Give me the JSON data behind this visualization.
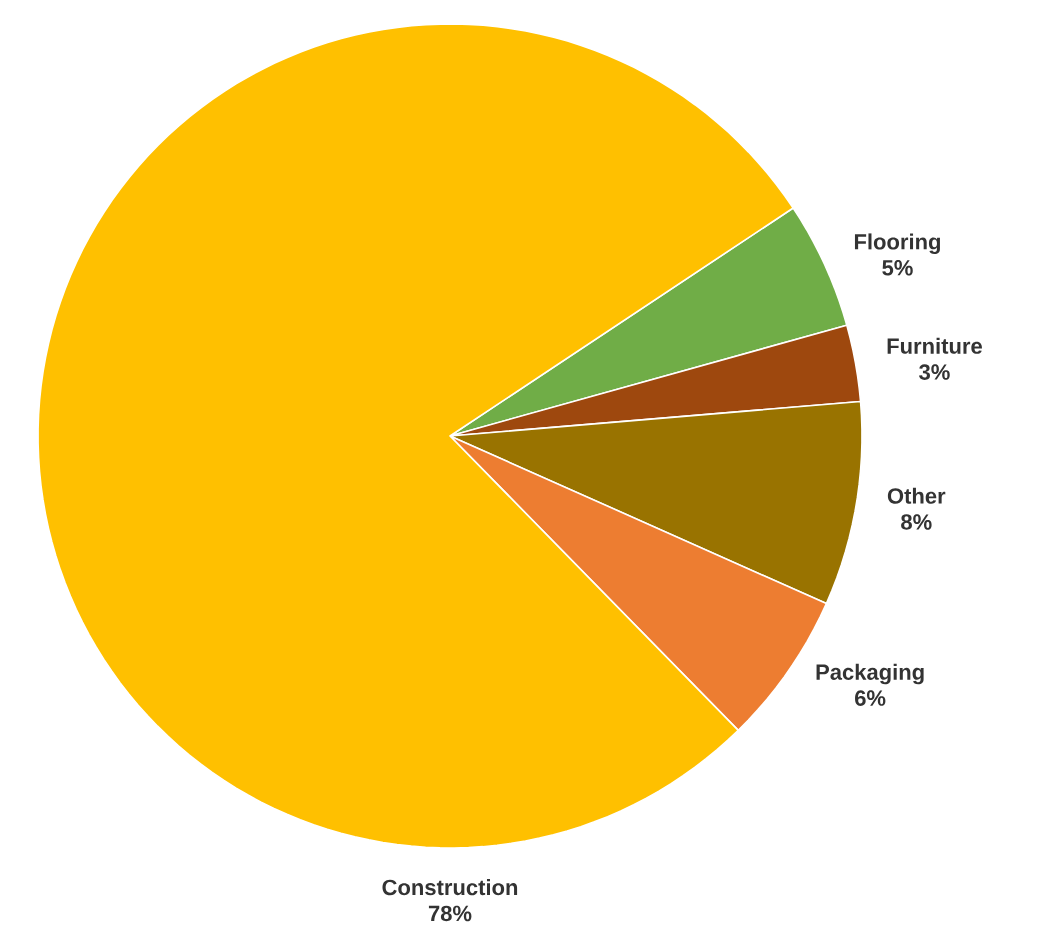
{
  "chart_data": {
    "type": "pie",
    "categories": [
      "Flooring",
      "Furniture",
      "Other",
      "Packaging",
      "Construction"
    ],
    "values": [
      5,
      3,
      8,
      6,
      78
    ],
    "colors": [
      "#70ad47",
      "#9e480e",
      "#997300",
      "#ed7d31",
      "#ffc000"
    ],
    "value_labels": [
      "5%",
      "3%",
      "8%",
      "6%",
      "78%"
    ]
  }
}
